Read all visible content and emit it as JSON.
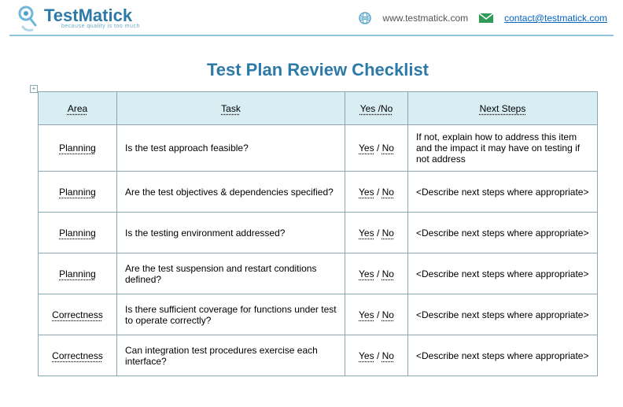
{
  "header": {
    "brand_name": "TestMatick",
    "tagline": "because quality is too much",
    "website": "www.testmatick.com",
    "email": "contact@testmatick.com"
  },
  "document": {
    "title": "Test Plan Review Checklist",
    "anchor_symbol": "+"
  },
  "table": {
    "columns": [
      "Area",
      "Task",
      "Yes /No",
      "Next Steps"
    ],
    "yn_parts": {
      "yes": "Yes",
      "sep": " / ",
      "no": "No"
    },
    "rows": [
      {
        "area": "Planning",
        "task": "Is the test approach feasible?",
        "next": "If not, explain how to address this item and the impact it may have on testing if not address"
      },
      {
        "area": "Planning",
        "task": "Are the test objectives & dependencies specified?",
        "next": "<Describe next steps where appropriate>"
      },
      {
        "area": "Planning",
        "task": "Is the testing environment addressed?",
        "next": "<Describe next steps where appropriate>"
      },
      {
        "area": "Planning",
        "task": "Are the test suspension and restart conditions defined?",
        "next": "<Describe next steps where appropriate>"
      },
      {
        "area": "Correctness",
        "task": "Is there sufficient coverage for functions under test to operate correctly?",
        "next": "<Describe next steps where appropriate>"
      },
      {
        "area": "Correctness",
        "task": "Can integration test procedures exercise each interface?",
        "next": "<Describe next steps where appropriate>"
      }
    ]
  },
  "colors": {
    "brand": "#2d7aa8",
    "header_bg": "#d8eef3",
    "border": "#8aa6b5",
    "divider": "#8fc3de",
    "link": "#0563c1"
  }
}
